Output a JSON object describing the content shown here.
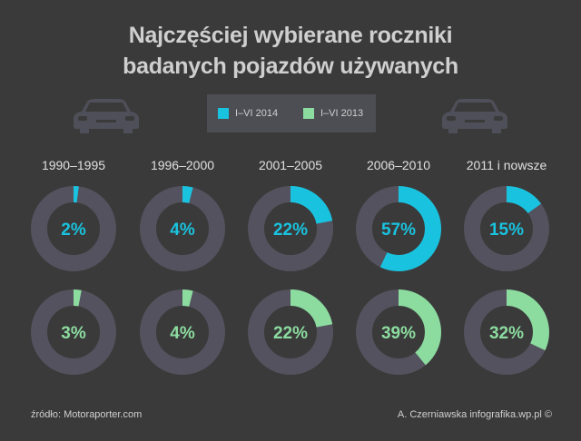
{
  "title_line1": "Najczęściej wybierane roczniki",
  "title_line2": "badanych pojazdów używanych",
  "legend": [
    {
      "label": "I–VI 2014",
      "color": "#19c3df"
    },
    {
      "label": "I–VI 2013",
      "color": "#8cdca0"
    }
  ],
  "colors": {
    "background": "#3a3a3a",
    "track": "#54525e",
    "legend_bg": "#4d4d54",
    "car": "#4f4f59"
  },
  "icons": [
    "car-icon",
    "car-icon"
  ],
  "chart_data": {
    "type": "donut",
    "categories": [
      "1990–1995",
      "1996–2000",
      "2001–2005",
      "2006–2010",
      "2011 i nowsze"
    ],
    "unit": "%",
    "series": [
      {
        "name": "I–VI 2014",
        "color": "#19c3df",
        "values": [
          2,
          4,
          22,
          57,
          15
        ]
      },
      {
        "name": "I–VI 2013",
        "color": "#8cdca0",
        "values": [
          3,
          4,
          22,
          39,
          32
        ]
      }
    ]
  },
  "footer": {
    "source": "źródło: Motoraporter.com",
    "credit": "A. Czerniawska infografika.wp.pl ©"
  }
}
